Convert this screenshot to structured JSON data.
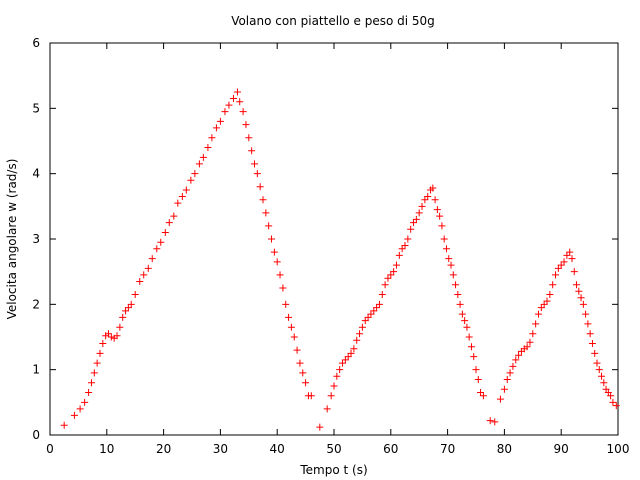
{
  "chart_data": {
    "type": "scatter",
    "title": "Volano con piattello e peso di 50g",
    "xlabel": "Tempo t (s)",
    "ylabel": "Velocita angolare w (rad/s)",
    "xlim": [
      0,
      100
    ],
    "ylim": [
      0,
      6
    ],
    "xticks": [
      0,
      10,
      20,
      30,
      40,
      50,
      60,
      70,
      80,
      90,
      100
    ],
    "yticks": [
      0,
      1,
      2,
      3,
      4,
      5,
      6
    ],
    "grid": false,
    "legend": "none",
    "marker": "plus",
    "color": "#ff0000",
    "segments": [
      {
        "x": [
          2.5,
          4.3,
          5.3,
          6.1,
          6.8,
          7.3,
          7.8,
          8.3,
          8.8,
          9.3,
          9.8,
          10.3,
          10.8,
          11.3,
          11.8,
          12.3,
          12.8,
          13.3,
          13.8,
          14.3,
          15.0,
          15.8,
          16.5,
          17.3,
          18.0,
          18.8,
          19.5,
          20.3,
          21.0,
          21.8,
          22.5,
          23.3,
          24.0,
          24.8,
          25.5,
          26.3,
          27.0,
          27.8,
          28.5,
          29.3,
          30.0,
          30.8,
          31.5,
          32.3,
          33.0,
          33.4,
          34.0,
          34.5,
          35.0,
          35.5,
          36.0,
          36.5,
          37.0,
          37.5,
          38.0,
          38.5,
          39.0,
          39.5,
          40.0,
          40.5,
          41.0,
          41.5,
          42.0,
          42.5,
          43.0,
          43.5,
          44.0,
          44.5,
          45.0,
          45.5,
          46.0
        ],
        "y": [
          0.15,
          0.3,
          0.4,
          0.5,
          0.65,
          0.8,
          0.95,
          1.1,
          1.25,
          1.4,
          1.52,
          1.55,
          1.5,
          1.48,
          1.52,
          1.65,
          1.8,
          1.9,
          1.95,
          2.0,
          2.15,
          2.35,
          2.45,
          2.55,
          2.7,
          2.85,
          2.95,
          3.1,
          3.25,
          3.35,
          3.55,
          3.65,
          3.75,
          3.9,
          4.0,
          4.15,
          4.25,
          4.4,
          4.55,
          4.7,
          4.8,
          4.95,
          5.05,
          5.15,
          5.25,
          5.1,
          4.95,
          4.75,
          4.55,
          4.35,
          4.15,
          4.0,
          3.8,
          3.6,
          3.4,
          3.2,
          3.0,
          2.8,
          2.65,
          2.45,
          2.25,
          2.0,
          1.8,
          1.65,
          1.5,
          1.3,
          1.1,
          0.95,
          0.8,
          0.6,
          0.6
        ]
      },
      {
        "x": [
          47.5,
          48.8,
          49.5,
          50.0,
          50.5,
          51.0,
          51.5,
          52.0,
          52.5,
          53.0,
          53.5,
          54.0,
          54.5,
          55.0,
          55.5,
          56.0,
          56.5,
          57.0,
          57.5,
          58.0,
          58.5,
          59.0,
          59.5,
          60.0,
          60.5,
          61.0,
          61.5,
          62.0,
          62.5,
          63.0,
          63.5,
          64.0,
          64.5,
          65.0,
          65.5,
          66.0,
          66.5,
          67.0,
          67.4,
          67.8,
          68.2,
          68.6,
          69.0,
          69.4,
          69.8,
          70.2,
          70.6,
          71.0,
          71.4,
          71.8,
          72.2,
          72.6,
          73.0,
          73.4,
          73.8,
          74.2,
          74.6,
          75.0,
          75.4,
          75.8,
          76.3
        ],
        "y": [
          0.12,
          0.4,
          0.6,
          0.75,
          0.9,
          1.0,
          1.1,
          1.15,
          1.2,
          1.25,
          1.32,
          1.45,
          1.55,
          1.65,
          1.75,
          1.8,
          1.85,
          1.9,
          1.95,
          2.0,
          2.15,
          2.3,
          2.4,
          2.45,
          2.5,
          2.6,
          2.75,
          2.85,
          2.9,
          3.0,
          3.15,
          3.25,
          3.3,
          3.4,
          3.5,
          3.6,
          3.65,
          3.75,
          3.78,
          3.6,
          3.45,
          3.35,
          3.2,
          3.0,
          2.85,
          2.7,
          2.6,
          2.45,
          2.3,
          2.15,
          2.0,
          1.85,
          1.75,
          1.65,
          1.5,
          1.35,
          1.2,
          1.0,
          0.85,
          0.65,
          0.6
        ]
      },
      {
        "x": [
          77.5,
          78.3,
          79.3,
          80.0,
          80.5,
          81.0,
          81.5,
          82.0,
          82.5,
          83.0,
          83.5,
          84.0,
          84.5,
          85.0,
          85.5,
          86.0,
          86.5,
          87.0,
          87.5,
          88.0,
          88.5,
          89.0,
          89.5,
          90.0,
          90.5,
          91.0,
          91.5,
          91.9,
          92.3,
          92.7,
          93.1,
          93.5,
          93.9,
          94.3,
          94.7,
          95.1,
          95.5,
          95.9,
          96.3,
          96.7,
          97.1,
          97.5,
          97.9,
          98.3,
          98.7,
          99.1,
          99.7
        ],
        "y": [
          0.22,
          0.2,
          0.55,
          0.7,
          0.85,
          0.95,
          1.05,
          1.15,
          1.22,
          1.28,
          1.32,
          1.35,
          1.42,
          1.55,
          1.7,
          1.85,
          1.95,
          2.0,
          2.05,
          2.15,
          2.3,
          2.45,
          2.55,
          2.6,
          2.65,
          2.75,
          2.8,
          2.7,
          2.5,
          2.3,
          2.2,
          2.1,
          2.0,
          1.85,
          1.7,
          1.55,
          1.4,
          1.25,
          1.1,
          1.0,
          0.9,
          0.8,
          0.7,
          0.65,
          0.6,
          0.5,
          0.45
        ]
      }
    ]
  }
}
